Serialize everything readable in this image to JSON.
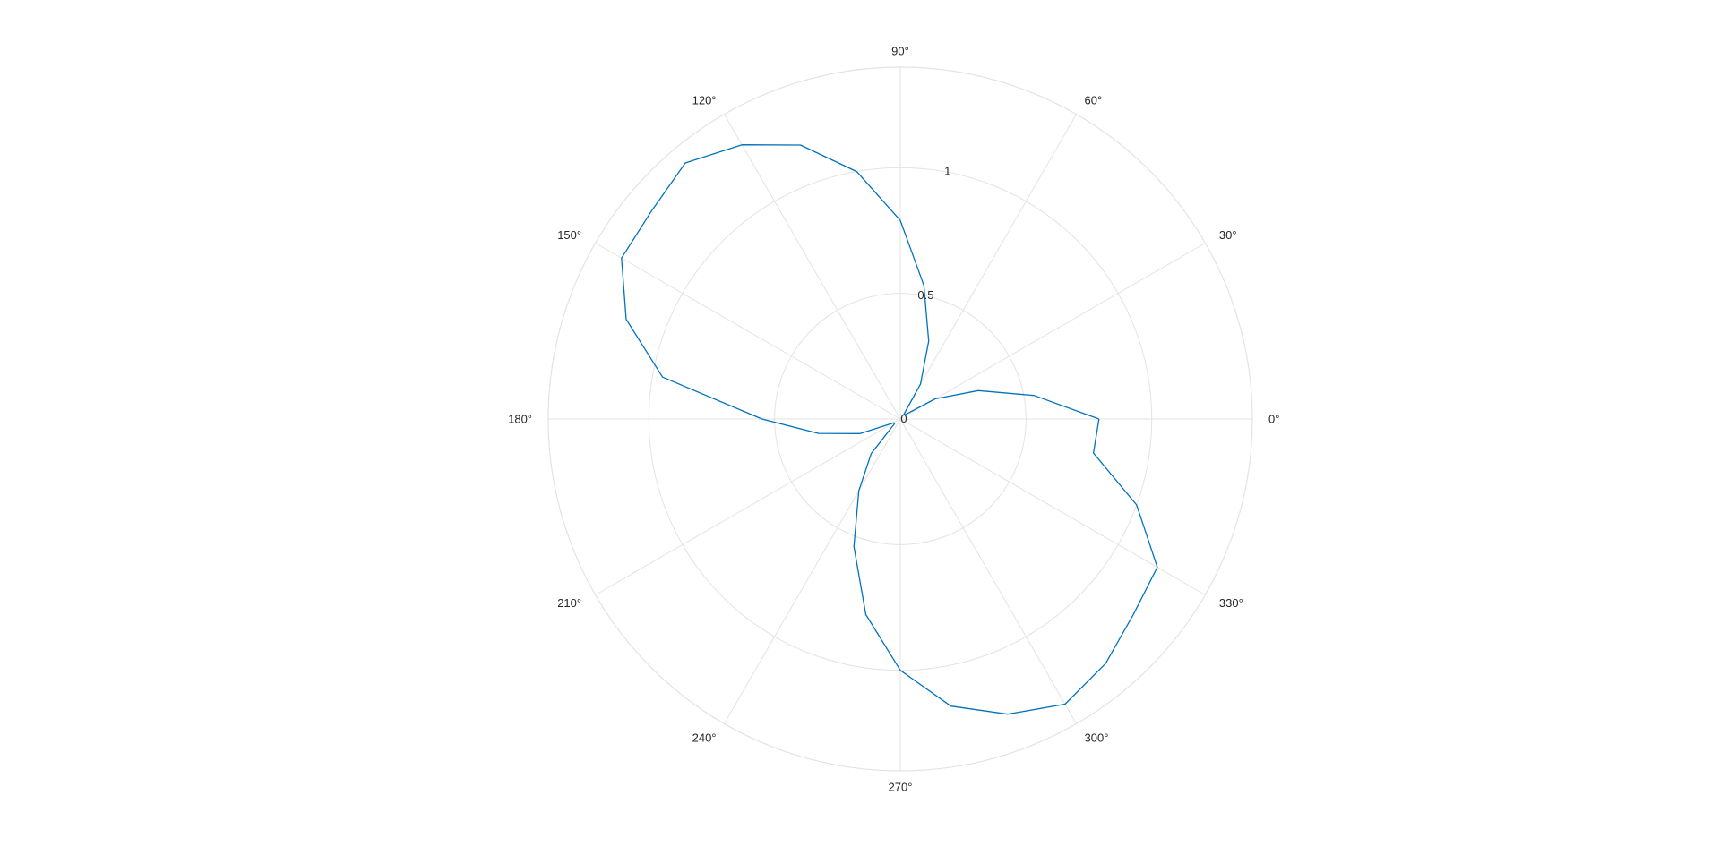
{
  "chart_data": {
    "type": "polar-line",
    "title": "",
    "rlim": [
      0,
      1.4
    ],
    "r_ticks": [
      0,
      0.5,
      1
    ],
    "r_tick_labels": [
      "0",
      "0.5",
      "1"
    ],
    "theta_ticks": [
      0,
      30,
      60,
      90,
      120,
      150,
      180,
      210,
      240,
      270,
      300,
      330
    ],
    "theta_tick_labels": [
      "0°",
      "30°",
      "60°",
      "90°",
      "120°",
      "150°",
      "180°",
      "210°",
      "240°",
      "270°",
      "300°",
      "330°"
    ],
    "theta_unit": "degrees",
    "grid": true,
    "series": [
      {
        "color": "#0072BD",
        "theta": [
          0,
          10,
          20,
          30,
          40,
          50,
          60,
          70,
          80,
          90,
          100,
          110,
          120,
          130,
          140,
          150,
          160,
          170,
          180,
          190,
          200,
          210,
          220,
          230,
          240,
          250,
          260,
          270,
          280,
          290,
          300,
          310,
          320,
          330,
          340,
          350,
          360
        ],
        "r": [
          0.79,
          0.54,
          0.33,
          0.16,
          0.03,
          0.02,
          0.16,
          0.33,
          0.54,
          0.79,
          1.0,
          1.16,
          1.26,
          1.33,
          1.29,
          1.28,
          1.16,
          0.96,
          0.55,
          0.33,
          0.17,
          0.03,
          0.03,
          0.18,
          0.33,
          0.54,
          0.79,
          1.0,
          1.16,
          1.25,
          1.31,
          1.27,
          1.21,
          1.18,
          1.0,
          0.78,
          0.79
        ]
      }
    ]
  }
}
